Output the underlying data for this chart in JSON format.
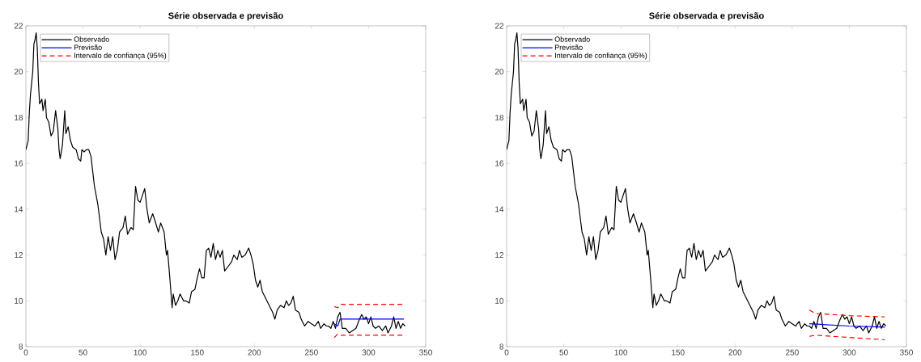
{
  "chart_data": [
    {
      "type": "line",
      "title": "Série observada e previsão",
      "xlim": [
        0,
        350
      ],
      "ylim": [
        8,
        22
      ],
      "xticks": [
        0,
        50,
        100,
        150,
        200,
        250,
        300,
        350
      ],
      "yticks": [
        8,
        10,
        12,
        14,
        16,
        18,
        20,
        22
      ],
      "legend": "top left",
      "grid": false,
      "series": [
        {
          "name": "Observado",
          "color": "#000000",
          "x": [
            0,
            2,
            3,
            4,
            5,
            6,
            7,
            8,
            9,
            10,
            11,
            12,
            14,
            15,
            17,
            18,
            20,
            22,
            24,
            26,
            28,
            29,
            30,
            32,
            34,
            35,
            37,
            39,
            41,
            44,
            46,
            48,
            49,
            51,
            53,
            55,
            57,
            60,
            63,
            66,
            68,
            70,
            72,
            74,
            76,
            78,
            80,
            82,
            85,
            87,
            89,
            92,
            94,
            96,
            98,
            100,
            102,
            104,
            106,
            108,
            111,
            113,
            116,
            118,
            121,
            123,
            124,
            126,
            128,
            129,
            131,
            133,
            135,
            138,
            140,
            143,
            145,
            148,
            150,
            152,
            154,
            156,
            158,
            160,
            162,
            164,
            166,
            168,
            170,
            172,
            174,
            177,
            180,
            182,
            185,
            187,
            189,
            192,
            195,
            197,
            199,
            201,
            203,
            205,
            207,
            210,
            213,
            216,
            218,
            220,
            223,
            226,
            228,
            230,
            232,
            234,
            236,
            239,
            241,
            244,
            247,
            250,
            253,
            256,
            258,
            261,
            263,
            265,
            267,
            269,
            271,
            273,
            275,
            277,
            280,
            283,
            286,
            289,
            292,
            294,
            296,
            298,
            300,
            302,
            304,
            306,
            309,
            312,
            315,
            317,
            320,
            322,
            324,
            326,
            328,
            330,
            332
          ],
          "values": [
            16.6,
            17.0,
            18.2,
            19.0,
            19.5,
            20.0,
            21.2,
            21.4,
            21.7,
            21.0,
            19.5,
            18.6,
            18.8,
            18.3,
            18.8,
            18.0,
            17.8,
            17.2,
            17.4,
            18.3,
            17.5,
            16.6,
            16.2,
            16.8,
            18.3,
            17.3,
            17.6,
            17.0,
            16.7,
            16.6,
            16.2,
            16.1,
            16.6,
            16.5,
            16.6,
            16.6,
            16.3,
            15.0,
            14.2,
            13.0,
            12.7,
            12.0,
            12.8,
            12.2,
            12.8,
            11.8,
            12.2,
            13.0,
            13.2,
            13.7,
            12.9,
            13.2,
            13.1,
            15.0,
            14.4,
            14.3,
            14.6,
            14.9,
            14.0,
            13.4,
            13.8,
            13.5,
            13.0,
            13.4,
            13.0,
            12.0,
            12.2,
            11.0,
            9.7,
            10.3,
            9.8,
            10.0,
            10.3,
            10.0,
            10.0,
            9.9,
            10.4,
            10.5,
            11.0,
            11.4,
            11.0,
            11.0,
            12.2,
            12.3,
            11.9,
            12.5,
            11.8,
            12.2,
            11.9,
            12.2,
            11.3,
            11.5,
            11.7,
            12.0,
            11.8,
            12.2,
            11.9,
            12.0,
            12.3,
            12.0,
            11.6,
            10.9,
            10.6,
            10.9,
            10.4,
            10.1,
            9.8,
            9.5,
            9.2,
            9.6,
            9.8,
            9.7,
            10.0,
            9.8,
            9.9,
            10.2,
            9.6,
            9.5,
            9.2,
            8.9,
            9.1,
            9.0,
            8.9,
            9.1,
            8.8,
            9.0,
            8.9,
            8.9,
            8.8,
            9.1,
            8.8,
            9.3,
            9.5,
            8.8,
            8.8,
            8.6,
            8.7,
            8.8,
            9.2,
            9.4,
            9.2,
            9.3,
            9.0,
            9.3,
            8.9,
            8.8,
            8.9,
            8.7,
            8.9,
            8.6,
            8.9,
            9.3,
            8.8,
            9.1,
            8.8,
            9.0,
            8.9
          ]
        },
        {
          "name": "Previsão",
          "color": "#0000ff",
          "x": [
            270,
            273,
            275,
            331
          ],
          "values": [
            9.0,
            8.9,
            9.2,
            9.2
          ]
        },
        {
          "name": "Intervalo de confiança (95%)",
          "color": "#ff0000",
          "line_style": "dashed",
          "x": [
            270,
            273,
            276,
            331
          ],
          "values": [
            9.75,
            9.7,
            9.85,
            9.85
          ]
        },
        {
          "color": "#ff0000",
          "line_style": "dashed",
          "x": [
            270,
            273,
            276,
            331
          ],
          "values": [
            8.4,
            8.55,
            8.5,
            8.5
          ]
        }
      ]
    },
    {
      "type": "line",
      "title": "Série observada e previsão",
      "xlim": [
        0,
        350
      ],
      "ylim": [
        8,
        22
      ],
      "xticks": [
        0,
        50,
        100,
        150,
        200,
        250,
        300,
        350
      ],
      "yticks": [
        8,
        10,
        12,
        14,
        16,
        18,
        20,
        22
      ],
      "legend": "top left",
      "grid": false,
      "series": [
        {
          "name": "Observado",
          "color": "#000000",
          "x": [
            0,
            2,
            3,
            4,
            5,
            6,
            7,
            8,
            9,
            10,
            11,
            12,
            14,
            15,
            17,
            18,
            20,
            22,
            24,
            26,
            28,
            29,
            30,
            32,
            34,
            35,
            37,
            39,
            41,
            44,
            46,
            48,
            49,
            51,
            53,
            55,
            57,
            60,
            63,
            66,
            68,
            70,
            72,
            74,
            76,
            78,
            80,
            82,
            85,
            87,
            89,
            92,
            94,
            96,
            98,
            100,
            102,
            104,
            106,
            108,
            111,
            113,
            116,
            118,
            121,
            123,
            124,
            126,
            128,
            129,
            131,
            133,
            135,
            138,
            140,
            143,
            145,
            148,
            150,
            152,
            154,
            156,
            158,
            160,
            162,
            164,
            166,
            168,
            170,
            172,
            174,
            177,
            180,
            182,
            185,
            187,
            189,
            192,
            195,
            197,
            199,
            201,
            203,
            205,
            207,
            210,
            213,
            216,
            218,
            220,
            223,
            226,
            228,
            230,
            232,
            234,
            236,
            239,
            241,
            244,
            247,
            250,
            253,
            256,
            258,
            261,
            263,
            265,
            267,
            269,
            271,
            273,
            275,
            277,
            280,
            283,
            286,
            289,
            292,
            294,
            296,
            298,
            300,
            302,
            304,
            306,
            309,
            312,
            315,
            317,
            320,
            322,
            324,
            326,
            328,
            330,
            332
          ],
          "values": [
            16.6,
            17.0,
            18.2,
            19.0,
            19.5,
            20.0,
            21.2,
            21.4,
            21.7,
            21.0,
            19.5,
            18.6,
            18.8,
            18.3,
            18.8,
            18.0,
            17.8,
            17.2,
            17.4,
            18.3,
            17.5,
            16.6,
            16.2,
            16.8,
            18.3,
            17.3,
            17.6,
            17.0,
            16.7,
            16.6,
            16.2,
            16.1,
            16.6,
            16.5,
            16.6,
            16.6,
            16.3,
            15.0,
            14.2,
            13.0,
            12.7,
            12.0,
            12.8,
            12.2,
            12.8,
            11.8,
            12.2,
            13.0,
            13.2,
            13.7,
            12.9,
            13.2,
            13.1,
            15.0,
            14.4,
            14.3,
            14.6,
            14.9,
            14.0,
            13.4,
            13.8,
            13.5,
            13.0,
            13.4,
            13.0,
            12.0,
            12.2,
            11.0,
            9.7,
            10.3,
            9.8,
            10.0,
            10.3,
            10.0,
            10.0,
            9.9,
            10.4,
            10.5,
            11.0,
            11.4,
            11.0,
            11.0,
            12.2,
            12.3,
            11.9,
            12.5,
            11.8,
            12.2,
            11.9,
            12.2,
            11.3,
            11.5,
            11.7,
            12.0,
            11.8,
            12.2,
            11.9,
            12.0,
            12.3,
            12.0,
            11.6,
            10.9,
            10.6,
            10.9,
            10.4,
            10.1,
            9.8,
            9.5,
            9.2,
            9.6,
            9.8,
            9.7,
            10.0,
            9.8,
            9.9,
            10.2,
            9.6,
            9.5,
            9.2,
            8.9,
            9.1,
            9.0,
            8.9,
            9.1,
            8.8,
            9.0,
            8.9,
            8.9,
            8.8,
            9.1,
            8.8,
            9.3,
            9.5,
            8.8,
            8.8,
            8.6,
            8.7,
            8.8,
            9.2,
            9.4,
            9.2,
            9.3,
            9.0,
            9.3,
            8.9,
            8.8,
            8.9,
            8.7,
            8.9,
            8.6,
            8.9,
            9.3,
            8.8,
            9.1,
            8.8,
            9.0,
            8.9
          ]
        },
        {
          "name": "Previsão",
          "color": "#0000ff",
          "x": [
            265,
            300,
            331
          ],
          "values": [
            9.0,
            8.9,
            8.85
          ]
        },
        {
          "name": "Intervalo de confiança (95%)",
          "color": "#ff0000",
          "line_style": "dashed",
          "x": [
            265,
            270,
            300,
            331
          ],
          "values": [
            9.6,
            9.45,
            9.35,
            9.3
          ]
        },
        {
          "color": "#ff0000",
          "line_style": "dashed",
          "x": [
            265,
            270,
            300,
            331
          ],
          "values": [
            8.45,
            8.5,
            8.4,
            8.3
          ]
        }
      ]
    }
  ]
}
